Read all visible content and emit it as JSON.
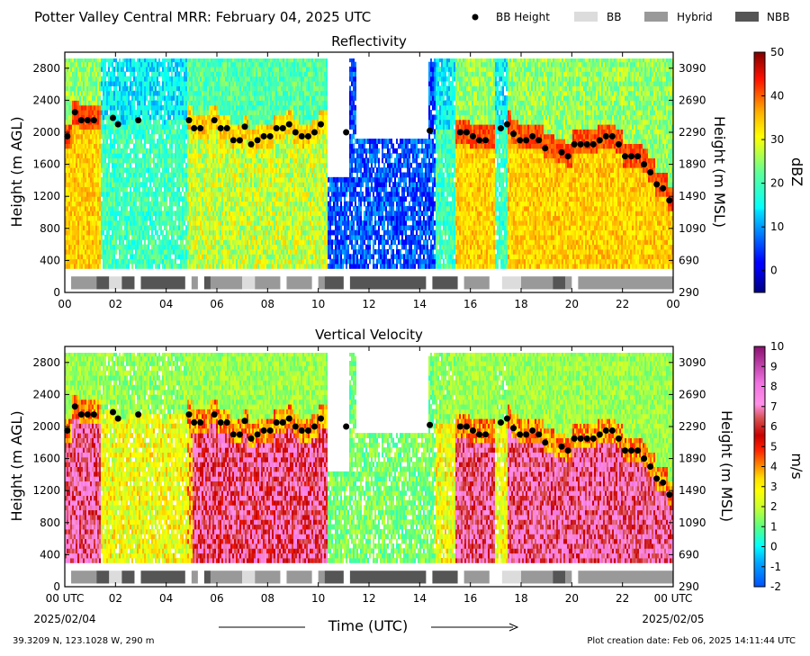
{
  "figure": {
    "suptitle": "Potter Valley Central MRR:  February 04, 2025 UTC",
    "legend": [
      {
        "label": "BB Height",
        "kind": "dot",
        "color": "#000000"
      },
      {
        "label": "BB",
        "kind": "rect",
        "color": "#dcdcdc"
      },
      {
        "label": "Hybrid",
        "kind": "rect",
        "color": "#999999"
      },
      {
        "label": "NBB",
        "kind": "rect",
        "color": "#555555"
      }
    ],
    "time_axis_label": "Time (UTC)",
    "start_date": "2025/02/04",
    "end_date": "2025/02/05",
    "location": "39.3209 N, 123.1028 W, 290 m",
    "creation_date": "Plot creation date: Feb 06, 2025 14:11:44 UTC"
  },
  "chart_data": [
    {
      "type": "heatmap",
      "title": "Reflectivity",
      "xlabel": "",
      "ylabel": "Height (m AGL)",
      "y2label": "Height (m MSL)",
      "xlim": [
        0,
        24
      ],
      "ylim": [
        0,
        3000
      ],
      "x_ticks": [
        "00",
        "02",
        "04",
        "06",
        "08",
        "10",
        "12",
        "14",
        "16",
        "18",
        "20",
        "22",
        "00"
      ],
      "y_ticks": [
        0,
        400,
        800,
        1200,
        1600,
        2000,
        2400,
        2800
      ],
      "y2_ticks": [
        290,
        690,
        1090,
        1490,
        1890,
        2290,
        2690,
        3090
      ],
      "colorbar": {
        "label": "dBZ",
        "min": -5,
        "max": 50,
        "ticks": [
          0,
          10,
          20,
          30,
          40,
          50
        ]
      },
      "bb_height_points": [
        [
          0.1,
          1950
        ],
        [
          0.4,
          2250
        ],
        [
          0.65,
          2150
        ],
        [
          0.9,
          2150
        ],
        [
          1.15,
          2150
        ],
        [
          1.9,
          2180
        ],
        [
          2.1,
          2100
        ],
        [
          2.9,
          2150
        ],
        [
          4.9,
          2150
        ],
        [
          5.1,
          2050
        ],
        [
          5.35,
          2050
        ],
        [
          5.9,
          2150
        ],
        [
          6.15,
          2050
        ],
        [
          6.4,
          2050
        ],
        [
          6.65,
          1900
        ],
        [
          6.9,
          1900
        ],
        [
          7.1,
          2070
        ],
        [
          7.35,
          1850
        ],
        [
          7.6,
          1900
        ],
        [
          7.85,
          1950
        ],
        [
          8.1,
          1950
        ],
        [
          8.35,
          2050
        ],
        [
          8.6,
          2050
        ],
        [
          8.85,
          2100
        ],
        [
          9.1,
          2000
        ],
        [
          9.35,
          1950
        ],
        [
          9.6,
          1950
        ],
        [
          9.85,
          2000
        ],
        [
          10.1,
          2100
        ],
        [
          11.1,
          2000
        ],
        [
          14.4,
          2020
        ],
        [
          15.6,
          2000
        ],
        [
          15.85,
          2000
        ],
        [
          16.1,
          1950
        ],
        [
          16.35,
          1900
        ],
        [
          16.6,
          1900
        ],
        [
          17.2,
          2050
        ],
        [
          17.45,
          2100
        ],
        [
          17.7,
          1980
        ],
        [
          17.95,
          1900
        ],
        [
          18.2,
          1900
        ],
        [
          18.45,
          1950
        ],
        [
          18.7,
          1900
        ],
        [
          18.95,
          1800
        ],
        [
          19.6,
          1750
        ],
        [
          19.85,
          1700
        ],
        [
          20.1,
          1850
        ],
        [
          20.35,
          1850
        ],
        [
          20.6,
          1850
        ],
        [
          20.85,
          1850
        ],
        [
          21.1,
          1900
        ],
        [
          21.35,
          1950
        ],
        [
          21.6,
          1950
        ],
        [
          21.85,
          1850
        ],
        [
          22.1,
          1700
        ],
        [
          22.35,
          1700
        ],
        [
          22.6,
          1700
        ],
        [
          22.85,
          1600
        ],
        [
          23.1,
          1500
        ],
        [
          23.35,
          1350
        ],
        [
          23.6,
          1300
        ],
        [
          23.85,
          1150
        ]
      ],
      "bb_type_segments": [
        {
          "start": 0.25,
          "end": 1.25,
          "type": "Hybrid"
        },
        {
          "start": 1.25,
          "end": 1.75,
          "type": "NBB"
        },
        {
          "start": 1.75,
          "end": 2.25,
          "type": "BB"
        },
        {
          "start": 2.25,
          "end": 2.75,
          "type": "NBB"
        },
        {
          "start": 3.0,
          "end": 4.75,
          "type": "NBB"
        },
        {
          "start": 5.0,
          "end": 5.25,
          "type": "Hybrid"
        },
        {
          "start": 5.5,
          "end": 5.75,
          "type": "NBB"
        },
        {
          "start": 5.75,
          "end": 7.0,
          "type": "Hybrid"
        },
        {
          "start": 7.0,
          "end": 7.5,
          "type": "BB"
        },
        {
          "start": 7.5,
          "end": 8.5,
          "type": "Hybrid"
        },
        {
          "start": 8.75,
          "end": 9.75,
          "type": "Hybrid"
        },
        {
          "start": 10.0,
          "end": 10.25,
          "type": "Hybrid"
        },
        {
          "start": 10.25,
          "end": 11.0,
          "type": "NBB"
        },
        {
          "start": 11.25,
          "end": 14.25,
          "type": "NBB"
        },
        {
          "start": 14.5,
          "end": 15.5,
          "type": "NBB"
        },
        {
          "start": 15.75,
          "end": 16.75,
          "type": "Hybrid"
        },
        {
          "start": 17.25,
          "end": 18.0,
          "type": "BB"
        },
        {
          "start": 18.0,
          "end": 19.25,
          "type": "Hybrid"
        },
        {
          "start": 19.25,
          "end": 19.75,
          "type": "NBB"
        },
        {
          "start": 19.75,
          "end": 20.0,
          "type": "Hybrid"
        },
        {
          "start": 20.25,
          "end": 24.0,
          "type": "Hybrid"
        }
      ]
    },
    {
      "type": "heatmap",
      "title": "Vertical Velocity",
      "xlabel": "Time (UTC)",
      "ylabel": "Height (m AGL)",
      "y2label": "Height (m MSL)",
      "xlim": [
        0,
        24
      ],
      "ylim": [
        0,
        3000
      ],
      "x_ticks": [
        "00 UTC",
        "02",
        "04",
        "06",
        "08",
        "10",
        "12",
        "14",
        "16",
        "18",
        "20",
        "22",
        "00 UTC"
      ],
      "y_ticks": [
        0,
        400,
        800,
        1200,
        1600,
        2000,
        2400,
        2800
      ],
      "y2_ticks": [
        290,
        690,
        1090,
        1490,
        1890,
        2290,
        2690,
        3090
      ],
      "colorbar": {
        "label": "m/s",
        "min": -2,
        "max": 10,
        "ticks": [
          -2,
          -1,
          0,
          1,
          2,
          3,
          4,
          5,
          6,
          7,
          8,
          9,
          10
        ]
      },
      "bb_height_points": "same as Reflectivity",
      "bb_type_segments": "same as Reflectivity"
    }
  ]
}
